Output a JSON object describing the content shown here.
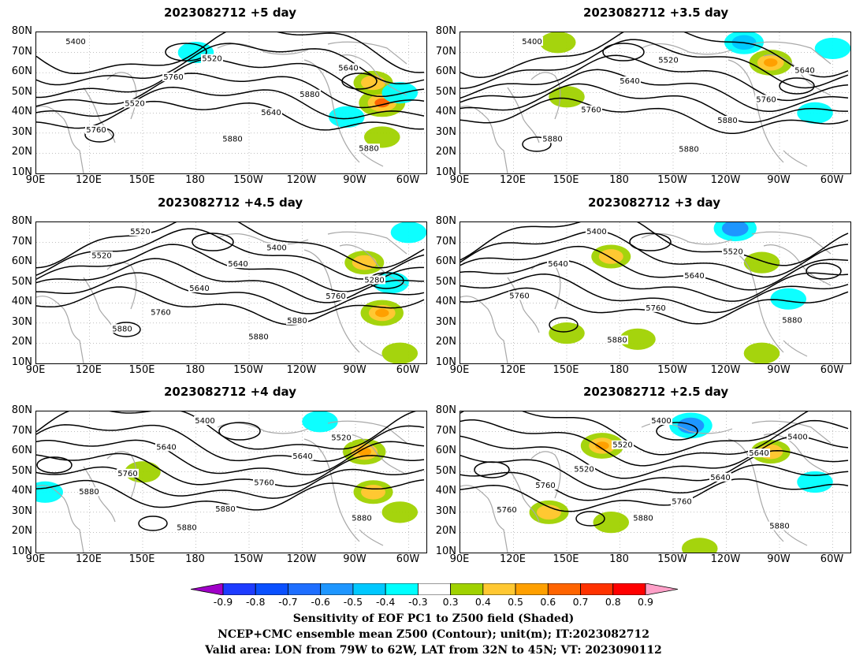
{
  "figure": {
    "panels": [
      {
        "id": "p5",
        "title": "2023082712  +5 day"
      },
      {
        "id": "p35",
        "title": "2023082712  +3.5 day"
      },
      {
        "id": "p45",
        "title": "2023082712  +4.5 day"
      },
      {
        "id": "p3",
        "title": "2023082712  +3 day"
      },
      {
        "id": "p4",
        "title": "2023082712  +4 day"
      },
      {
        "id": "p25",
        "title": "2023082712  +2.5 day"
      }
    ],
    "lat_ticks": [
      "80N",
      "70N",
      "60N",
      "50N",
      "40N",
      "30N",
      "20N",
      "10N"
    ],
    "lon_ticks": [
      "90E",
      "120E",
      "150E",
      "180",
      "150W",
      "120W",
      "90W",
      "60W"
    ],
    "colorbar": {
      "labels": [
        "-0.9",
        "-0.8",
        "-0.7",
        "-0.6",
        "-0.5",
        "-0.4",
        "-0.3",
        "0.3",
        "0.4",
        "0.5",
        "0.6",
        "0.7",
        "0.8",
        "0.9"
      ],
      "colors": [
        "#a000c8",
        "#1e3cff",
        "#0a50ff",
        "#1e6eff",
        "#1e96ff",
        "#00c8ff",
        "#00ffff",
        "#ffffff",
        "#a0d200",
        "#ffc832",
        "#ffa000",
        "#ff6400",
        "#ff3200",
        "#ff0000",
        "#ffa0c8"
      ]
    },
    "footer": [
      "Sensitivity of EOF PC1 to Z500 field (Shaded)",
      "NCEP+CMC ensemble mean Z500 (Contour); unit(m); IT:2023082712",
      "Valid area: LON from 79W to 62W, LAT from 32N to 45N; VT: 2023090112"
    ]
  },
  "chart_data": [
    {
      "type": "contour",
      "title": "2023082712  +5 day",
      "lead_time_days": 5,
      "lon_range": [
        "90E",
        "50W"
      ],
      "lat_range": [
        "10N",
        "80N"
      ],
      "contour_labels": [
        "5400",
        "5520",
        "5640",
        "5760",
        "5880",
        "5520",
        "5640",
        "5760",
        "5880",
        "5880"
      ],
      "shading": [
        {
          "lon": "75W",
          "lat": "45N",
          "value": 0.7
        },
        {
          "lon": "80W",
          "lat": "55N",
          "value": 0.5
        },
        {
          "lon": "65W",
          "lat": "50N",
          "value": -0.4
        },
        {
          "lon": "95W",
          "lat": "38N",
          "value": -0.4
        },
        {
          "lon": "180",
          "lat": "70N",
          "value": -0.4
        },
        {
          "lon": "75W",
          "lat": "28N",
          "value": 0.4
        }
      ]
    },
    {
      "type": "contour",
      "title": "2023082712  +3.5 day",
      "lead_time_days": 3.5,
      "lon_range": [
        "90E",
        "50W"
      ],
      "lat_range": [
        "10N",
        "80N"
      ],
      "contour_labels": [
        "5400",
        "5520",
        "5640",
        "5640",
        "5760",
        "5760",
        "5880",
        "5880",
        "5880"
      ],
      "shading": [
        {
          "lon": "95W",
          "lat": "65N",
          "value": 0.6
        },
        {
          "lon": "110W",
          "lat": "75N",
          "value": -0.5
        },
        {
          "lon": "60W",
          "lat": "72N",
          "value": -0.4
        },
        {
          "lon": "150E",
          "lat": "48N",
          "value": 0.4
        },
        {
          "lon": "145E",
          "lat": "75N",
          "value": 0.4
        },
        {
          "lon": "70W",
          "lat": "40N",
          "value": -0.4
        }
      ]
    },
    {
      "type": "contour",
      "title": "2023082712  +4.5 day",
      "lead_time_days": 4.5,
      "lon_range": [
        "90E",
        "50W"
      ],
      "lat_range": [
        "10N",
        "80N"
      ],
      "contour_labels": [
        "5520",
        "5400",
        "5520",
        "5640",
        "5280",
        "5640",
        "5760",
        "5760",
        "5880",
        "5880",
        "5880"
      ],
      "shading": [
        {
          "lon": "75W",
          "lat": "35N",
          "value": 0.6
        },
        {
          "lon": "85W",
          "lat": "60N",
          "value": 0.5
        },
        {
          "lon": "70W",
          "lat": "50N",
          "value": -0.4
        },
        {
          "lon": "60W",
          "lat": "75N",
          "value": -0.4
        },
        {
          "lon": "65W",
          "lat": "15N",
          "value": 0.4
        }
      ]
    },
    {
      "type": "contour",
      "title": "2023082712  +3 day",
      "lead_time_days": 3,
      "lon_range": [
        "90E",
        "50W"
      ],
      "lat_range": [
        "10N",
        "80N"
      ],
      "contour_labels": [
        "5400",
        "5520",
        "5640",
        "5640",
        "5760",
        "5760",
        "5880",
        "5880"
      ],
      "shading": [
        {
          "lon": "115W",
          "lat": "77N",
          "value": -0.6
        },
        {
          "lon": "175E",
          "lat": "63N",
          "value": 0.5
        },
        {
          "lon": "100W",
          "lat": "60N",
          "value": 0.4
        },
        {
          "lon": "85W",
          "lat": "42N",
          "value": -0.4
        },
        {
          "lon": "150E",
          "lat": "25N",
          "value": 0.4
        },
        {
          "lon": "170W",
          "lat": "22N",
          "value": 0.4
        },
        {
          "lon": "100W",
          "lat": "15N",
          "value": 0.4
        }
      ]
    },
    {
      "type": "contour",
      "title": "2023082712  +4 day",
      "lead_time_days": 4,
      "lon_range": [
        "90E",
        "50W"
      ],
      "lat_range": [
        "10N",
        "80N"
      ],
      "contour_labels": [
        "5400",
        "5520",
        "5640",
        "5640",
        "5760",
        "5760",
        "5880",
        "5880",
        "5880",
        "5880"
      ],
      "shading": [
        {
          "lon": "85W",
          "lat": "60N",
          "value": 0.6
        },
        {
          "lon": "110W",
          "lat": "75N",
          "value": -0.4
        },
        {
          "lon": "80W",
          "lat": "40N",
          "value": 0.5
        },
        {
          "lon": "65W",
          "lat": "30N",
          "value": 0.4
        },
        {
          "lon": "150E",
          "lat": "50N",
          "value": 0.4
        },
        {
          "lon": "95E",
          "lat": "40N",
          "value": -0.4
        }
      ]
    },
    {
      "type": "contour",
      "title": "2023082712  +2.5 day",
      "lead_time_days": 2.5,
      "lon_range": [
        "90E",
        "50W"
      ],
      "lat_range": [
        "10N",
        "80N"
      ],
      "contour_labels": [
        "5400",
        "5400",
        "5520",
        "5640",
        "5520",
        "5640",
        "5760",
        "5760",
        "5760",
        "5880",
        "5880"
      ],
      "shading": [
        {
          "lon": "140W",
          "lat": "73N",
          "value": -0.6
        },
        {
          "lon": "170E",
          "lat": "63N",
          "value": 0.6
        },
        {
          "lon": "95W",
          "lat": "60N",
          "value": 0.5
        },
        {
          "lon": "70W",
          "lat": "45N",
          "value": -0.4
        },
        {
          "lon": "140E",
          "lat": "30N",
          "value": 0.5
        },
        {
          "lon": "175E",
          "lat": "25N",
          "value": 0.4
        },
        {
          "lon": "135W",
          "lat": "12N",
          "value": 0.4
        }
      ]
    }
  ]
}
